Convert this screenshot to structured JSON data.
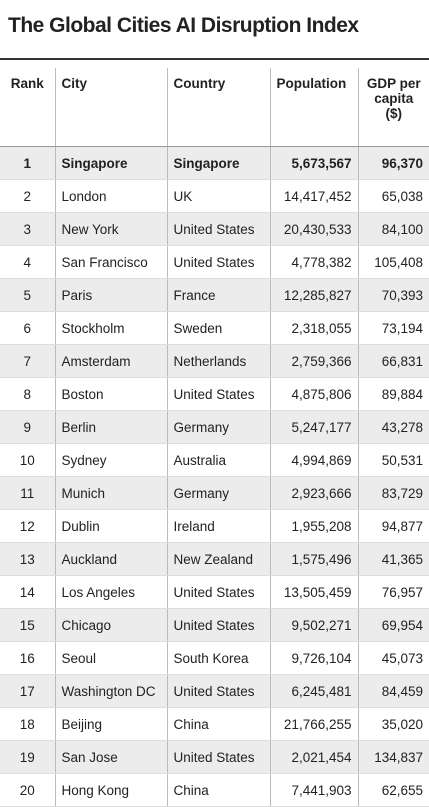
{
  "header": {
    "title": "The Global Cities AI Disruption Index"
  },
  "table": {
    "columns": [
      "Rank",
      "City",
      "Country",
      "Population",
      "GDP per capita ($)"
    ],
    "rows": [
      [
        "1",
        "Singapore",
        "Singapore",
        "5,673,567",
        "96,370"
      ],
      [
        "2",
        "London",
        "UK",
        "14,417,452",
        "65,038"
      ],
      [
        "3",
        "New York",
        "United States",
        "20,430,533",
        "84,100"
      ],
      [
        "4",
        "San Francisco",
        "United States",
        "4,778,382",
        "105,408"
      ],
      [
        "5",
        "Paris",
        "France",
        "12,285,827",
        "70,393"
      ],
      [
        "6",
        "Stockholm",
        "Sweden",
        "2,318,055",
        "73,194"
      ],
      [
        "7",
        "Amsterdam",
        "Netherlands",
        "2,759,366",
        "66,831"
      ],
      [
        "8",
        "Boston",
        "United States",
        "4,875,806",
        "89,884"
      ],
      [
        "9",
        "Berlin",
        "Germany",
        "5,247,177",
        "43,278"
      ],
      [
        "10",
        "Sydney",
        "Australia",
        "4,994,869",
        "50,531"
      ],
      [
        "11",
        "Munich",
        "Germany",
        "2,923,666",
        "83,729"
      ],
      [
        "12",
        "Dublin",
        "Ireland",
        "1,955,208",
        "94,877"
      ],
      [
        "13",
        "Auckland",
        "New Zealand",
        "1,575,496",
        "41,365"
      ],
      [
        "14",
        "Los Angeles",
        "United States",
        "13,505,459",
        "76,957"
      ],
      [
        "15",
        "Chicago",
        "United States",
        "9,502,271",
        "69,954"
      ],
      [
        "16",
        "Seoul",
        "South Korea",
        "9,726,104",
        "45,073"
      ],
      [
        "17",
        "Washington DC",
        "United States",
        "6,245,481",
        "84,459"
      ],
      [
        "18",
        "Beijing",
        "China",
        "21,766,255",
        "35,020"
      ],
      [
        "19",
        "San Jose",
        "United States",
        "2,021,454",
        "134,837"
      ],
      [
        "20",
        "Hong Kong",
        "China",
        "7,441,903",
        "62,655"
      ]
    ]
  }
}
